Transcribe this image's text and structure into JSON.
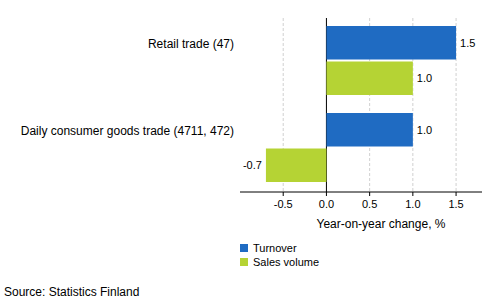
{
  "chart_data": {
    "type": "bar",
    "orientation": "horizontal",
    "categories": [
      "Retail trade (47)",
      "Daily consumer goods trade (4711, 472)"
    ],
    "series": [
      {
        "name": "Turnover",
        "color": "#1f6bc2",
        "values": [
          1.5,
          1.0
        ],
        "value_labels": [
          "1.5",
          "1.0"
        ]
      },
      {
        "name": "Sales volume",
        "color": "#b5d334",
        "values": [
          1.0,
          -0.7
        ],
        "value_labels": [
          "1.0",
          "-0.7"
        ]
      }
    ],
    "xlabel": "Year-on-year change, %",
    "xlim": [
      -1.0,
      1.8
    ],
    "xticks": [
      -0.5,
      {
        "value": 0,
        "label": "0.0"
      },
      0.5,
      {
        "value": 1,
        "label": "1.0"
      },
      1.5
    ],
    "grid": true,
    "data_labels": true,
    "legend": "bottom-left",
    "source": "Source: Statistics Finland"
  }
}
